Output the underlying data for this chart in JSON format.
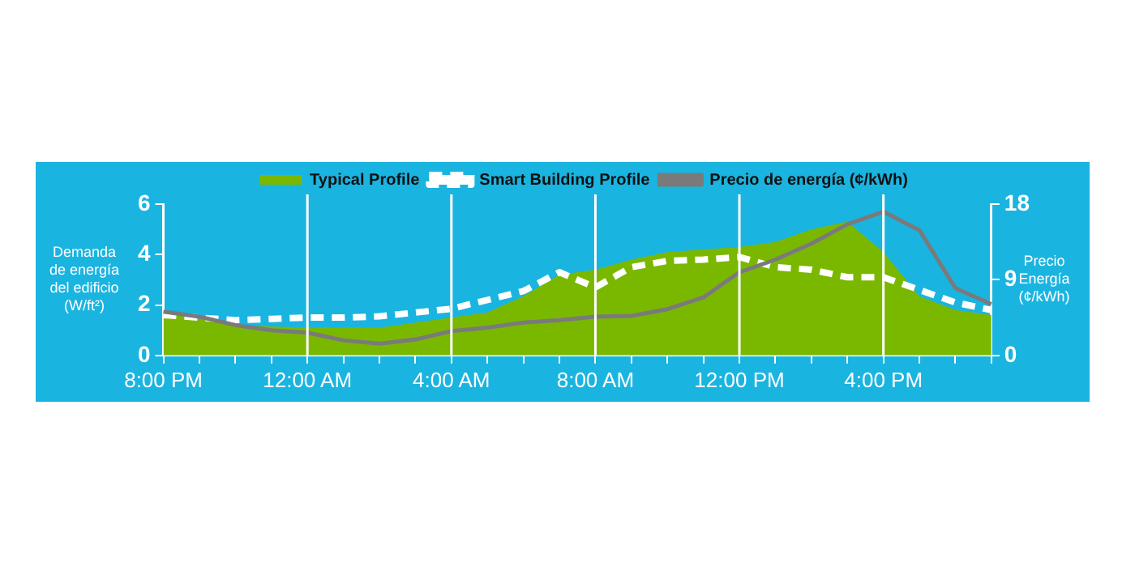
{
  "chart_data": {
    "type": "line",
    "ylabel": "Demanda\nde energía\ndel edificio\n(W/ft²)",
    "y2label": "Precio\nEnergía\n(¢/kWh)",
    "categories": [
      "8:00 PM",
      null,
      null,
      null,
      "12:00 AM",
      null,
      null,
      null,
      "4:00 AM",
      null,
      null,
      null,
      "8:00 AM",
      null,
      null,
      null,
      "12:00 PM",
      null,
      null,
      null,
      "4:00 PM",
      null,
      null,
      null
    ],
    "ylim": [
      0,
      6
    ],
    "yticks": [
      0,
      2,
      4,
      6
    ],
    "y2lim": [
      0,
      18
    ],
    "y2ticks": [
      0,
      9,
      18
    ],
    "grid": "x",
    "legend": "top",
    "series": [
      {
        "name": "Typical Profile",
        "type": "area",
        "color": "#7ab800",
        "values": [
          1.7,
          1.45,
          1.2,
          1.15,
          1.1,
          1.1,
          1.1,
          1.3,
          1.5,
          1.7,
          2.35,
          3.2,
          3.4,
          3.8,
          4.1,
          4.2,
          4.3,
          4.5,
          5.0,
          5.3,
          4.1,
          2.35,
          1.8,
          1.6
        ]
      },
      {
        "name": "Smart Building Profile",
        "line_style": "dashed",
        "color": "#ffffff",
        "values": [
          1.6,
          1.5,
          1.4,
          1.45,
          1.5,
          1.5,
          1.55,
          1.7,
          1.85,
          2.2,
          2.55,
          3.3,
          2.7,
          3.5,
          3.75,
          3.8,
          3.9,
          3.5,
          3.4,
          3.1,
          3.1,
          2.6,
          2.1,
          1.8
        ]
      },
      {
        "name": "Precio de energía (¢/kWh)",
        "line_style": "solid",
        "axis": "y2",
        "color": "#7a7a7a",
        "values": [
          5.2,
          4.6,
          3.6,
          3.0,
          2.7,
          1.8,
          1.4,
          1.9,
          2.9,
          3.3,
          3.9,
          4.2,
          4.6,
          4.7,
          5.5,
          6.9,
          9.9,
          11.4,
          13.3,
          15.6,
          17.1,
          14.9,
          8.0,
          6.1
        ]
      }
    ]
  }
}
